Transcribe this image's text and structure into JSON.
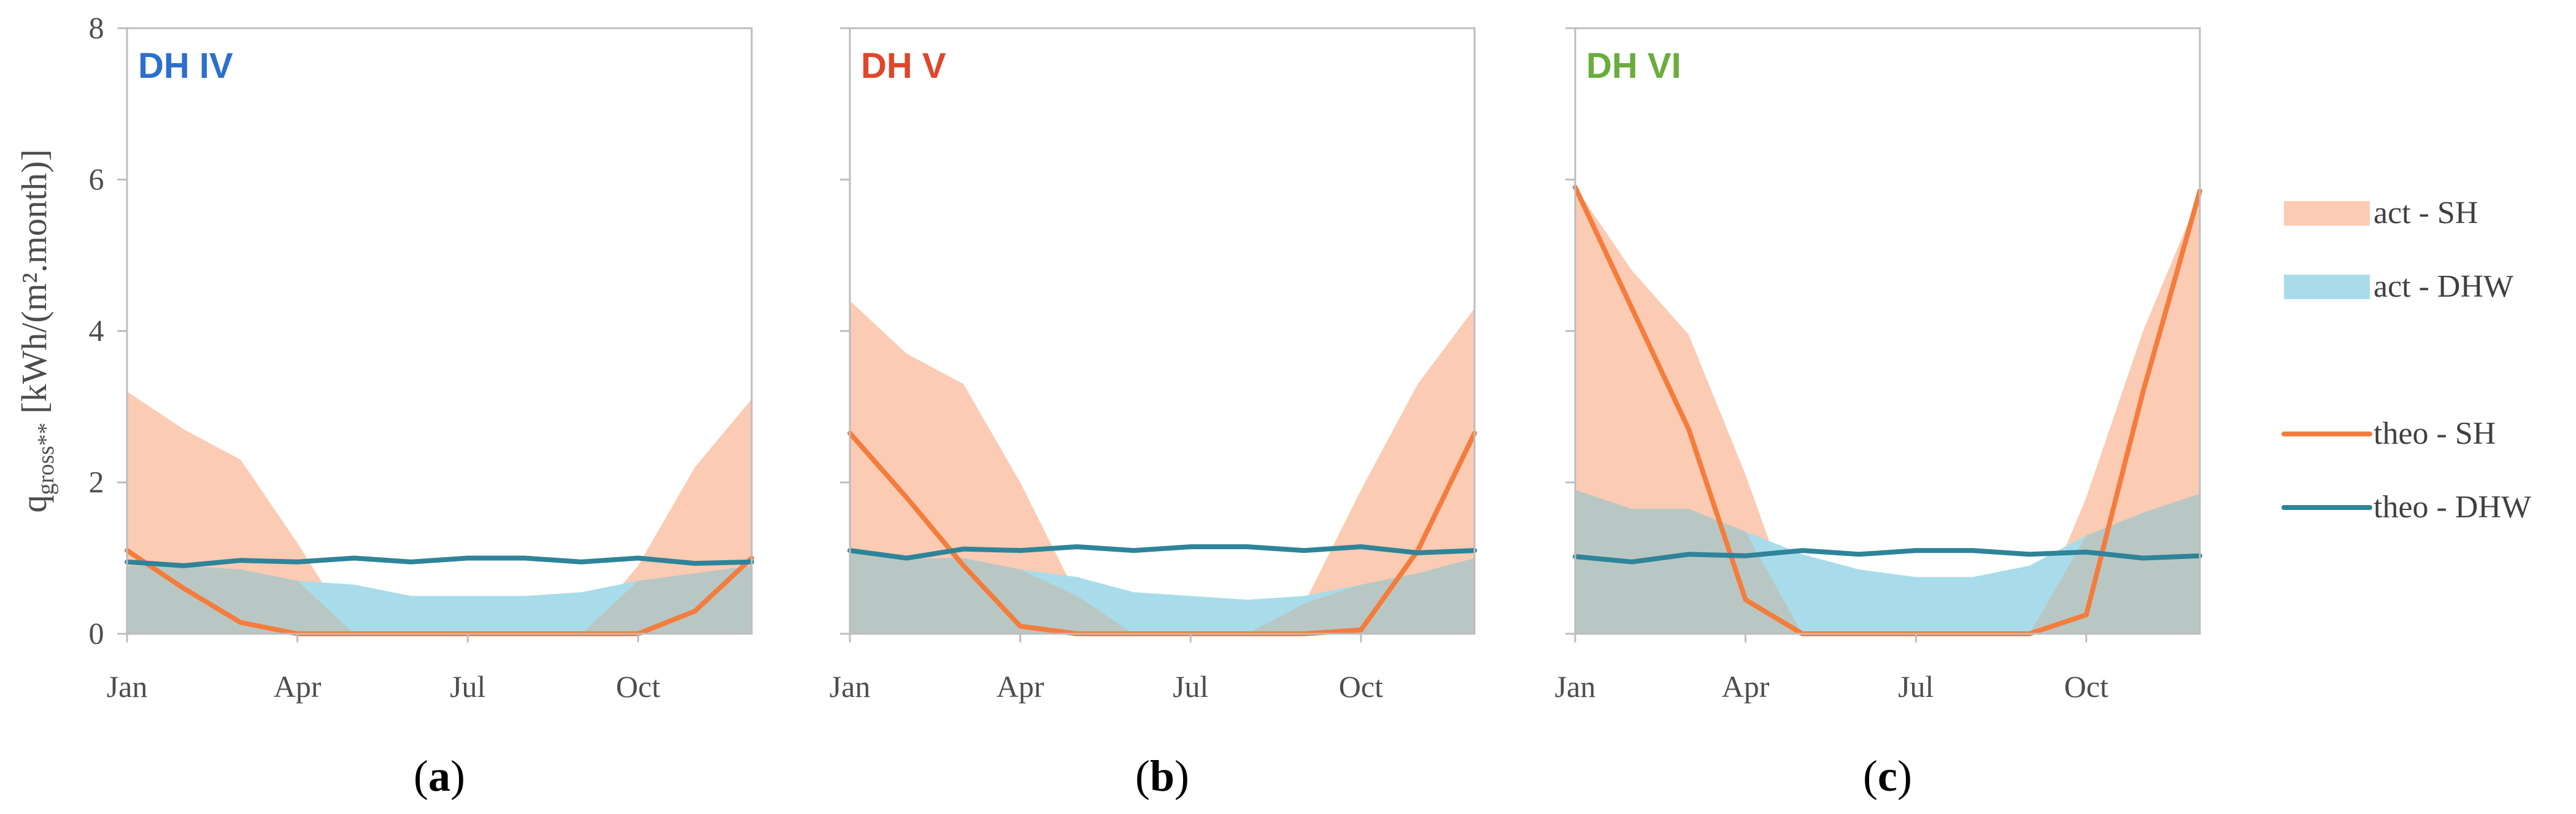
{
  "figure": {
    "ylabel_main": "q",
    "ylabel_sub": "gross**",
    "ylabel_unit": "[kWh/(m².month)]",
    "colors": {
      "act_sh_fill": "#FBCBB3",
      "act_dhw_fill": "#A9DCEA",
      "overlap_fill": "#B9C7C4",
      "theo_sh": "#F47C3C",
      "theo_dhw": "#2E8499",
      "axis": "#BDBDBD",
      "tick_text": "#4D4D4D"
    }
  },
  "chart_data": [
    {
      "type": "area",
      "title": "DH IV",
      "title_color": "#2C6FCF",
      "panel_label": "a",
      "xlabel": "",
      "ylabel": "qgross** [kWh/(m².month)]",
      "x": [
        1,
        2,
        3,
        4,
        5,
        6,
        7,
        8,
        9,
        10,
        11,
        12
      ],
      "xticks": [
        {
          "x": 1,
          "label": "Jan"
        },
        {
          "x": 4,
          "label": "Apr"
        },
        {
          "x": 7,
          "label": "Jul"
        },
        {
          "x": 10,
          "label": "Oct"
        }
      ],
      "yticks": [
        0,
        2,
        4,
        6,
        8
      ],
      "ylim": [
        0,
        8
      ],
      "series": [
        {
          "name": "act - SH",
          "kind": "area",
          "values": [
            3.2,
            2.7,
            2.3,
            1.2,
            0,
            0,
            0,
            0,
            0,
            0.9,
            2.2,
            3.1
          ]
        },
        {
          "name": "act - DHW",
          "kind": "area",
          "values": [
            0.9,
            0.9,
            0.85,
            0.7,
            0.65,
            0.5,
            0.5,
            0.5,
            0.55,
            0.7,
            0.8,
            0.9
          ]
        },
        {
          "name": "theo - SH",
          "kind": "line",
          "values": [
            1.1,
            0.6,
            0.15,
            0,
            0,
            0,
            0,
            0,
            0,
            0,
            0.3,
            1.0
          ]
        },
        {
          "name": "theo - DHW",
          "kind": "line",
          "values": [
            0.95,
            0.9,
            0.97,
            0.95,
            1.0,
            0.95,
            1.0,
            1.0,
            0.95,
            1.0,
            0.93,
            0.95
          ]
        }
      ]
    },
    {
      "type": "area",
      "title": "DH V",
      "title_color": "#E0462A",
      "panel_label": "b",
      "xlabel": "",
      "ylabel": "",
      "x": [
        1,
        2,
        3,
        4,
        5,
        6,
        7,
        8,
        9,
        10,
        11,
        12
      ],
      "xticks": [
        {
          "x": 1,
          "label": "Jan"
        },
        {
          "x": 4,
          "label": "Apr"
        },
        {
          "x": 7,
          "label": "Jul"
        },
        {
          "x": 10,
          "label": "Oct"
        }
      ],
      "yticks": [
        0,
        2,
        4,
        6,
        8
      ],
      "ylim": [
        0,
        8
      ],
      "series": [
        {
          "name": "act - SH",
          "kind": "area",
          "values": [
            4.4,
            3.7,
            3.3,
            2.0,
            0.5,
            0,
            0,
            0,
            0.4,
            1.9,
            3.3,
            4.3
          ]
        },
        {
          "name": "act - DHW",
          "kind": "area",
          "values": [
            1.1,
            1.0,
            1.0,
            0.85,
            0.75,
            0.55,
            0.5,
            0.45,
            0.5,
            0.65,
            0.8,
            1.0
          ]
        },
        {
          "name": "theo - SH",
          "kind": "line",
          "values": [
            2.65,
            1.8,
            0.9,
            0.1,
            0,
            0,
            0,
            0,
            0,
            0.05,
            1.1,
            2.65
          ]
        },
        {
          "name": "theo - DHW",
          "kind": "line",
          "values": [
            1.1,
            1.0,
            1.12,
            1.1,
            1.15,
            1.1,
            1.15,
            1.15,
            1.1,
            1.15,
            1.07,
            1.1
          ]
        }
      ]
    },
    {
      "type": "area",
      "title": "DH VI",
      "title_color": "#6AAD3C",
      "panel_label": "c",
      "xlabel": "",
      "ylabel": "",
      "x": [
        1,
        2,
        3,
        4,
        5,
        6,
        7,
        8,
        9,
        10,
        11,
        12
      ],
      "xticks": [
        {
          "x": 1,
          "label": "Jan"
        },
        {
          "x": 4,
          "label": "Apr"
        },
        {
          "x": 7,
          "label": "Jul"
        },
        {
          "x": 10,
          "label": "Oct"
        }
      ],
      "yticks": [
        0,
        2,
        4,
        6,
        8
      ],
      "ylim": [
        0,
        8
      ],
      "series": [
        {
          "name": "act - SH",
          "kind": "area",
          "values": [
            5.9,
            4.8,
            3.95,
            2.1,
            0,
            0,
            0,
            0,
            0,
            1.8,
            4.0,
            5.8
          ]
        },
        {
          "name": "act - DHW",
          "kind": "area",
          "values": [
            1.9,
            1.65,
            1.65,
            1.35,
            1.05,
            0.85,
            0.75,
            0.75,
            0.9,
            1.3,
            1.6,
            1.85
          ]
        },
        {
          "name": "theo - SH",
          "kind": "line",
          "values": [
            5.9,
            4.3,
            2.7,
            0.45,
            0,
            0,
            0,
            0,
            0,
            0.25,
            3.2,
            5.85
          ]
        },
        {
          "name": "theo - DHW",
          "kind": "line",
          "values": [
            1.02,
            0.95,
            1.05,
            1.03,
            1.1,
            1.05,
            1.1,
            1.1,
            1.05,
            1.08,
            1.0,
            1.03
          ]
        }
      ]
    }
  ],
  "legend": {
    "placement": "right",
    "items": [
      {
        "name": "act - SH",
        "kind": "area",
        "color": "#FBCBB3"
      },
      {
        "name": "act - DHW",
        "kind": "area",
        "color": "#A9DCEA"
      },
      {
        "name": "theo - SH",
        "kind": "line",
        "color": "#F47C3C"
      },
      {
        "name": "theo - DHW",
        "kind": "line",
        "color": "#2E8499"
      }
    ]
  }
}
